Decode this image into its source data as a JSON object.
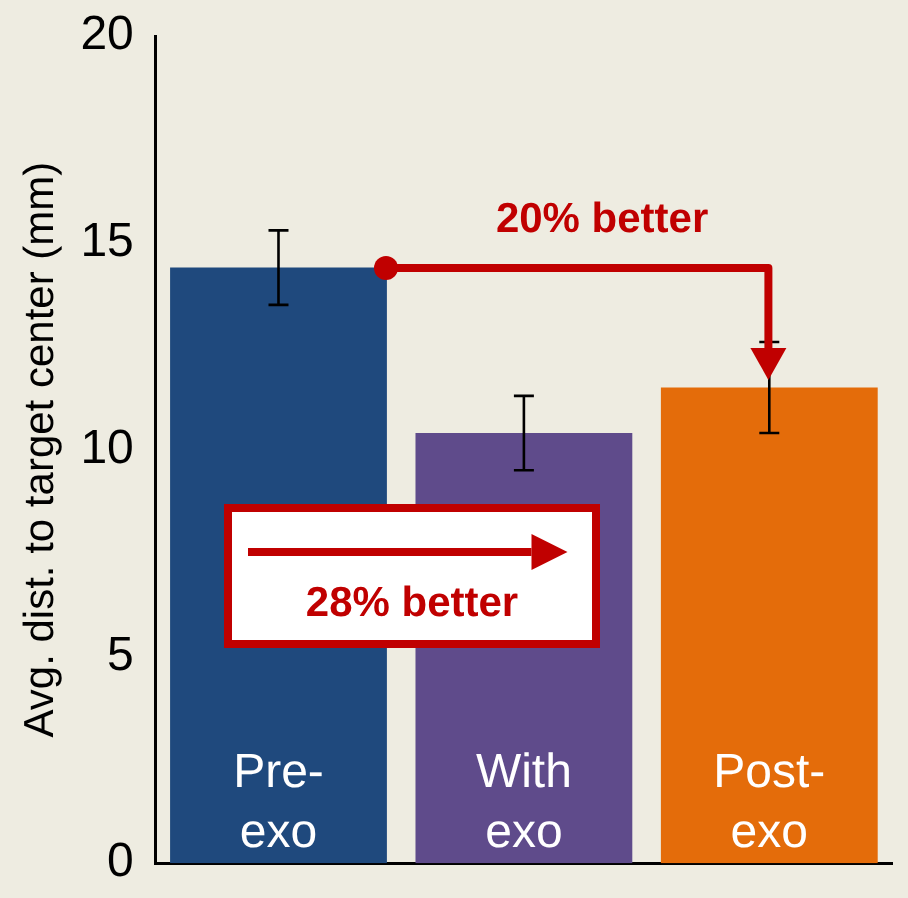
{
  "chart_data": {
    "type": "bar",
    "ylabel": "Avg. dist. to target center (mm)",
    "categories": [
      "Pre-exo",
      "With exo",
      "Post-exo"
    ],
    "values": [
      14.4,
      10.4,
      11.5
    ],
    "errors": [
      0.9,
      0.9,
      1.1
    ],
    "colors": [
      "#1f497d",
      "#5f4b8b",
      "#e46c0a"
    ],
    "ylim": [
      0,
      20
    ],
    "yticks": [
      0,
      5,
      10,
      15,
      20
    ],
    "grid": false,
    "legend": false,
    "annotations": [
      "20% better",
      "28% better"
    ]
  }
}
